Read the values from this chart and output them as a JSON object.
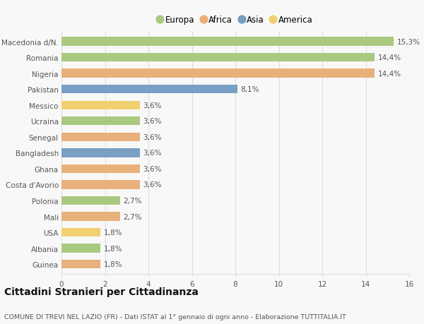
{
  "countries": [
    "Guinea",
    "Albania",
    "USA",
    "Mali",
    "Polonia",
    "Costa d'Avorio",
    "Ghana",
    "Bangladesh",
    "Senegal",
    "Ucraina",
    "Messico",
    "Pakistan",
    "Nigeria",
    "Romania",
    "Macedonia d/N."
  ],
  "values": [
    1.8,
    1.8,
    1.8,
    2.7,
    2.7,
    3.6,
    3.6,
    3.6,
    3.6,
    3.6,
    3.6,
    8.1,
    14.4,
    14.4,
    15.3
  ],
  "labels": [
    "1,8%",
    "1,8%",
    "1,8%",
    "2,7%",
    "2,7%",
    "3,6%",
    "3,6%",
    "3,6%",
    "3,6%",
    "3,6%",
    "3,6%",
    "8,1%",
    "14,4%",
    "14,4%",
    "15,3%"
  ],
  "continents": [
    "Africa",
    "Europa",
    "America",
    "Africa",
    "Europa",
    "Africa",
    "Africa",
    "Asia",
    "Africa",
    "Europa",
    "America",
    "Asia",
    "Africa",
    "Europa",
    "Europa"
  ],
  "continent_colors": {
    "Europa": "#a8c97f",
    "Africa": "#e8b07a",
    "Asia": "#7a9fc4",
    "America": "#f0d070"
  },
  "legend_order": [
    "Europa",
    "Africa",
    "Asia",
    "America"
  ],
  "title": "Cittadini Stranieri per Cittadinanza",
  "subtitle": "COMUNE DI TREVI NEL LAZIO (FR) - Dati ISTAT al 1° gennaio di ogni anno - Elaborazione TUTTITALIA.IT",
  "xlim": [
    0,
    16
  ],
  "xticks": [
    0,
    2,
    4,
    6,
    8,
    10,
    12,
    14,
    16
  ],
  "background_color": "#f8f8f8",
  "grid_color": "#dddddd",
  "bar_height": 0.55,
  "label_fontsize": 7.5,
  "title_fontsize": 10,
  "subtitle_fontsize": 6.8,
  "tick_fontsize": 7.5,
  "legend_fontsize": 8.5
}
